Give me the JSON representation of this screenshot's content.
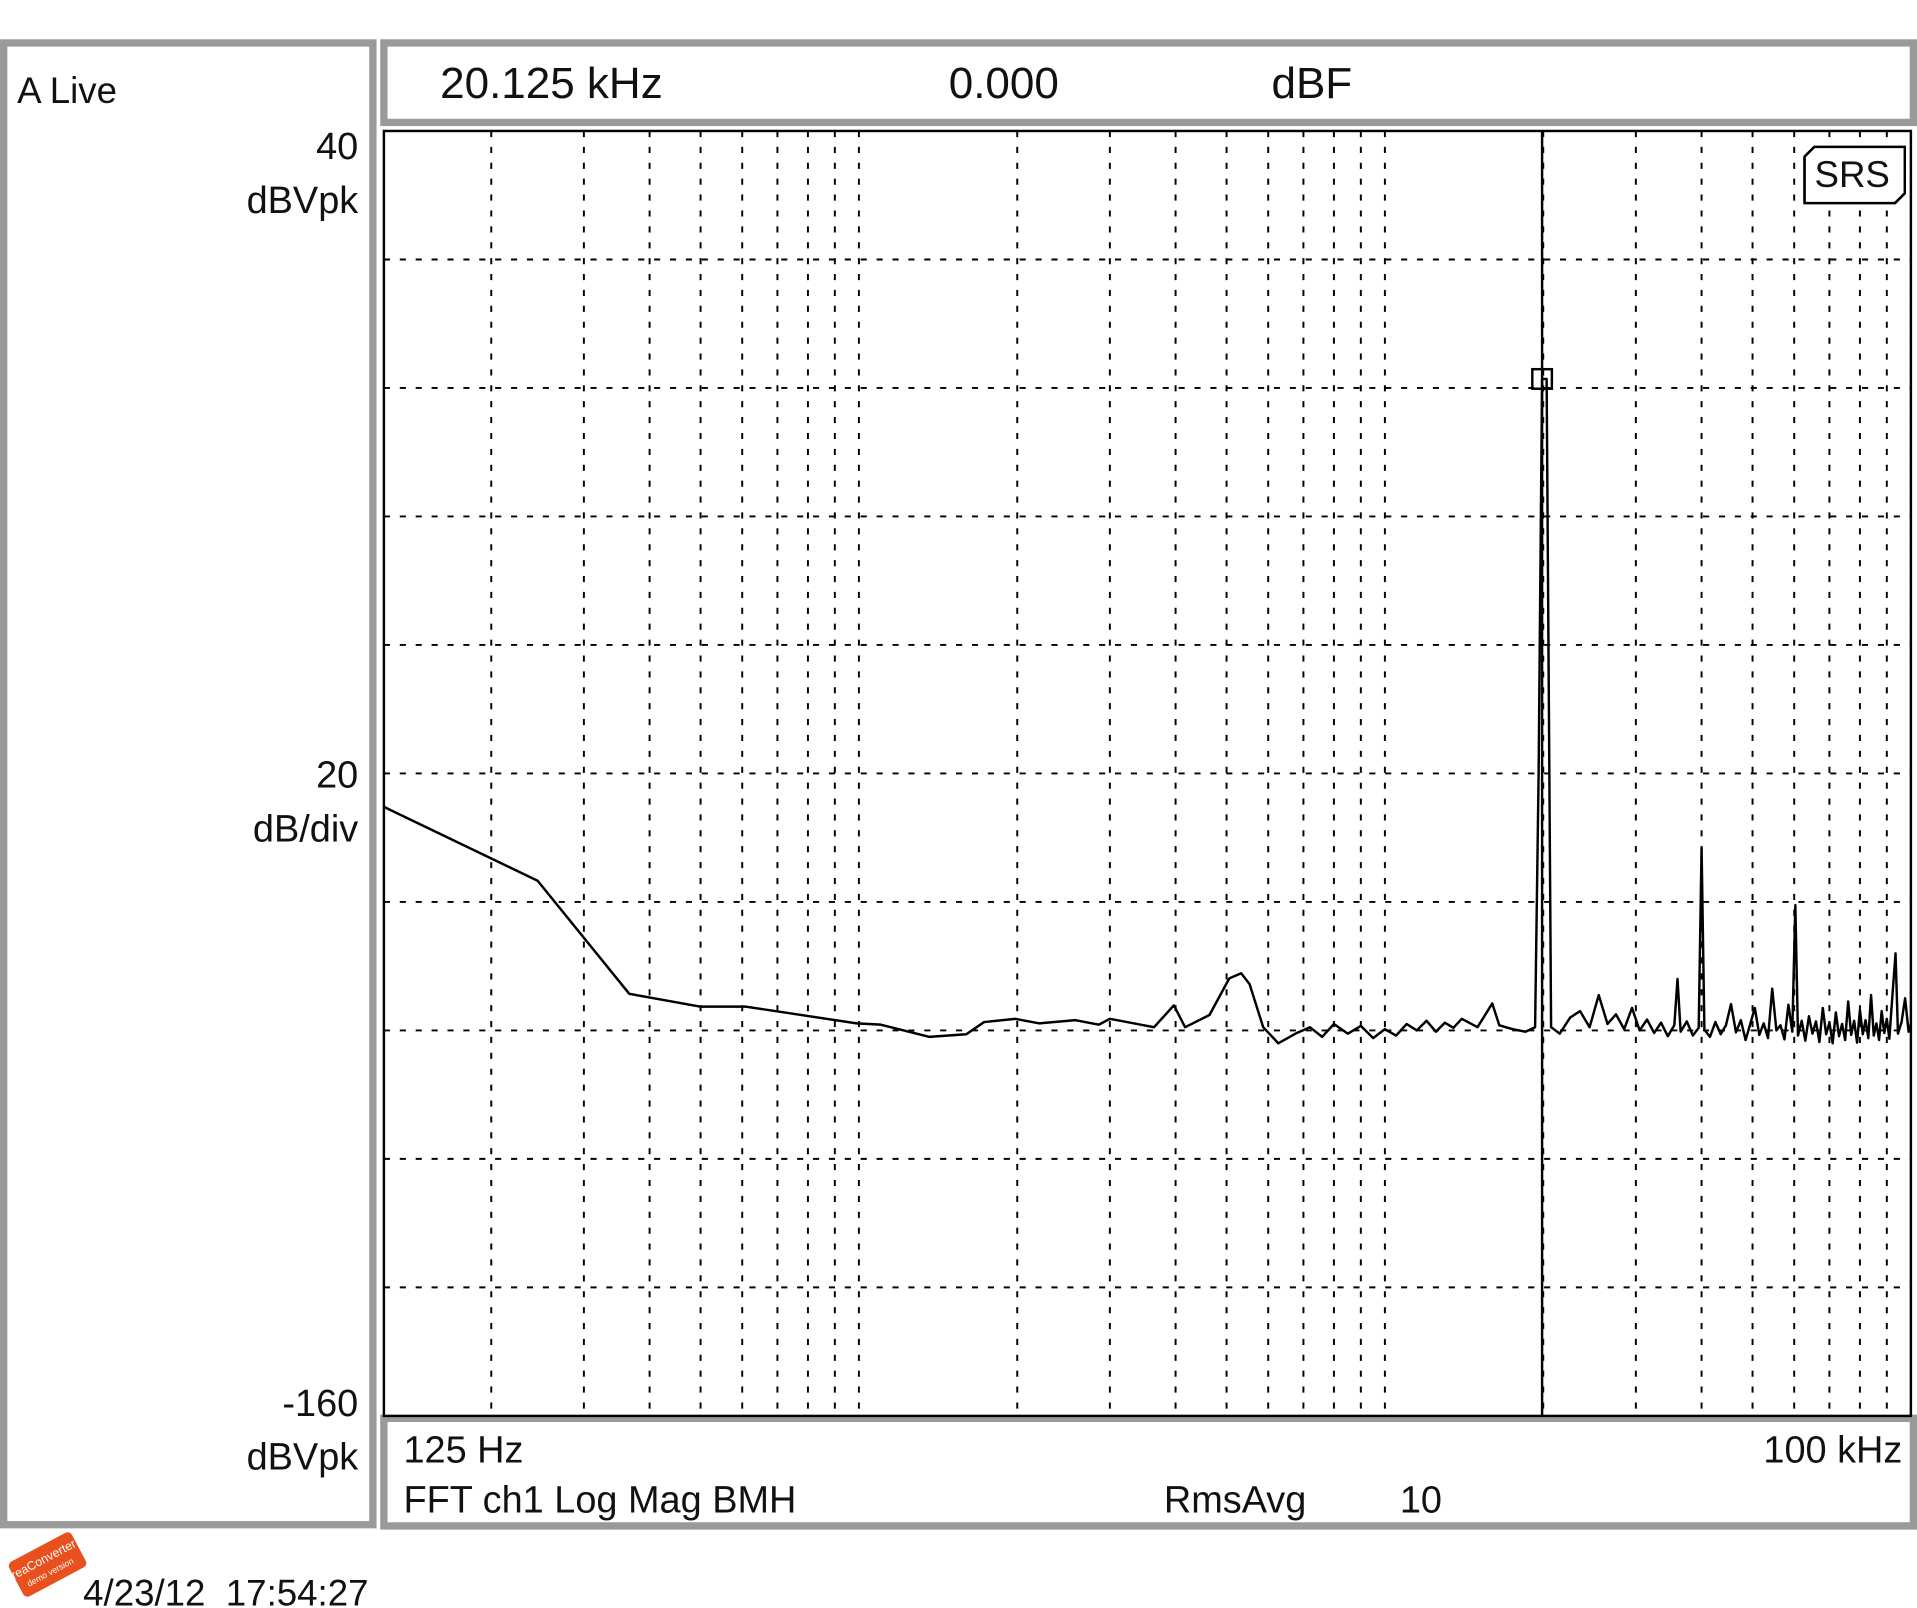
{
  "chart_data": {
    "type": "line",
    "status": "A Live",
    "marker_readout": [
      "20.125 kHz",
      "0.000",
      "dBF"
    ],
    "y_label": "dBVpk",
    "y_per_div": 20,
    "y_per_div_unit": "dB/div",
    "ylim": [
      -160,
      40
    ],
    "xlim": [
      125,
      100000
    ],
    "xscale": "log",
    "grid": true,
    "xticks": [
      {
        "value": 125,
        "label": "125 Hz"
      },
      {
        "value": 100000,
        "label": "100 kHz"
      }
    ],
    "measurement": "FFT ch1 Log Mag BMH",
    "averaging_label": "RmsAvg",
    "averaging_count": 10,
    "timestamp": "4/23/12  17:54:27",
    "logo": "SRS",
    "watermark": [
      "reaConverter",
      "demo version"
    ],
    "color": "#000000",
    "x": [
      125,
      245,
      366,
      500,
      610,
      990,
      1100,
      1360,
      1600,
      1730,
      1980,
      2200,
      2580,
      2860,
      3000,
      3640,
      3970,
      4170,
      4640,
      5060,
      5330,
      5530,
      5870,
      6270,
      6800,
      7200,
      7600,
      8000,
      8500,
      9000,
      9500,
      10000,
      10500,
      11000,
      11500,
      12000,
      12500,
      13000,
      13500,
      14000,
      15000,
      16000,
      16500,
      17500,
      18500,
      19300,
      19600,
      19900,
      20300,
      20700,
      21500,
      22500,
      23500,
      24500,
      25500,
      26500,
      27500,
      28500,
      29500,
      30500,
      31500,
      32500,
      33500,
      34500,
      35500,
      36000,
      36500,
      37500,
      38500,
      39500,
      40000,
      40500,
      41500,
      42500,
      43500,
      44500,
      45500,
      46500,
      47500,
      48500,
      49500,
      50500,
      51500,
      52500,
      53500,
      54500,
      55500,
      56500,
      57500,
      58500,
      59500,
      60300,
      61000,
      62000,
      63000,
      64000,
      65000,
      66000,
      67000,
      68000,
      69000,
      70000,
      71000,
      72000,
      73000,
      74000,
      75000,
      76000,
      77000,
      78000,
      79000,
      80000,
      81000,
      82000,
      83000,
      84000,
      85000,
      86000,
      87000,
      88000,
      89000,
      90000,
      91000,
      92000,
      93500,
      94500,
      96000,
      97500,
      99000,
      100000
    ],
    "values": [
      -65.2,
      -76.7,
      -94.3,
      -96.3,
      -96.3,
      -98.9,
      -99.1,
      -101,
      -100.6,
      -98.7,
      -98.2,
      -98.9,
      -98.4,
      -99.1,
      -98.2,
      -99.5,
      -96.1,
      -99.5,
      -97.6,
      -91.9,
      -91.1,
      -92.8,
      -99.5,
      -102,
      -100.4,
      -99.5,
      -101,
      -99,
      -100.5,
      -99.3,
      -101.2,
      -99.8,
      -100.8,
      -99,
      -100,
      -98.5,
      -100.2,
      -98.8,
      -99.6,
      -98.2,
      -99.5,
      -95.8,
      -99.2,
      -99.8,
      -100.2,
      -99.5,
      -60,
      1.4,
      1.4,
      -99.5,
      -100.5,
      -98,
      -97,
      -99.5,
      -94.5,
      -99,
      -97.5,
      -99.8,
      -96.5,
      -100,
      -98.3,
      -100.4,
      -98.8,
      -100.9,
      -99.2,
      -92,
      -100.2,
      -98.6,
      -100.8,
      -99.6,
      -71.5,
      -99.9,
      -101,
      -98.7,
      -100.6,
      -99.2,
      -95.9,
      -100.3,
      -98.4,
      -101.5,
      -99,
      -96.5,
      -100.7,
      -98.9,
      -101.2,
      -93.5,
      -100,
      -99.2,
      -101.4,
      -96,
      -100.2,
      -80.5,
      -100.8,
      -98.5,
      -101.6,
      -97.8,
      -100.5,
      -98.6,
      -101.8,
      -96.5,
      -100.6,
      -98.8,
      -102,
      -97.2,
      -100.9,
      -99,
      -101.5,
      -95.5,
      -100.7,
      -98.5,
      -101.9,
      -96.8,
      -100.6,
      -98.4,
      -101.2,
      -94.5,
      -100.8,
      -98.9,
      -101.5,
      -97,
      -100.4,
      -98.2,
      -101.3,
      -95.8,
      -88,
      -100.5,
      -98.7,
      -95,
      -100.2,
      -99
    ]
  }
}
